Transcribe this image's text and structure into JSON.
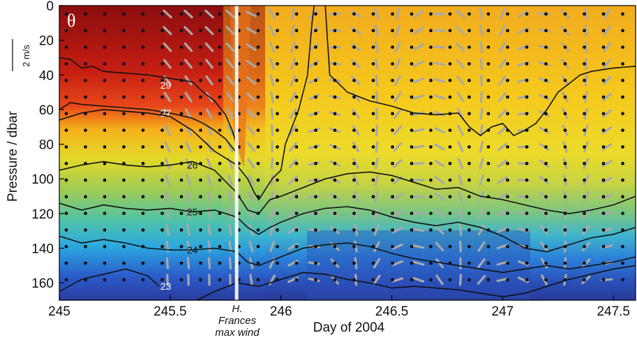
{
  "chart_data": {
    "type": "heatmap",
    "panel_label": "θ",
    "xlabel": "Day of 2004",
    "ylabel": "Pressure / dbar",
    "xlim": [
      245,
      247.6
    ],
    "ylim": [
      170,
      0
    ],
    "x_ticks": [
      {
        "value": 245,
        "label": "245"
      },
      {
        "value": 245.5,
        "label": "245.5"
      },
      {
        "value": 246,
        "label": "246"
      },
      {
        "value": 246.5,
        "label": "246.5"
      },
      {
        "value": 247,
        "label": "247"
      },
      {
        "value": 247.5,
        "label": "247.5"
      }
    ],
    "y_ticks": [
      {
        "value": 0,
        "label": "0"
      },
      {
        "value": 20,
        "label": "20"
      },
      {
        "value": 40,
        "label": "40"
      },
      {
        "value": 60,
        "label": "60"
      },
      {
        "value": 80,
        "label": "80"
      },
      {
        "value": 100,
        "label": "100"
      },
      {
        "value": 120,
        "label": "120"
      },
      {
        "value": 140,
        "label": "140"
      },
      {
        "value": 160,
        "label": "160"
      }
    ],
    "annotation": {
      "x": 245.8,
      "lines": [
        "H.",
        "Frances",
        "max wind"
      ]
    },
    "velocity_scale": {
      "label": "2 m/s"
    },
    "isotherms": [
      {
        "label": "29",
        "label_x": 245.48,
        "label_y": 46,
        "points": [
          [
            245,
            30
          ],
          [
            245.05,
            31
          ],
          [
            245.1,
            36
          ],
          [
            245.15,
            35
          ],
          [
            245.2,
            38
          ],
          [
            245.3,
            39
          ],
          [
            245.4,
            40
          ],
          [
            245.5,
            42
          ],
          [
            245.6,
            44
          ],
          [
            245.65,
            50
          ],
          [
            245.7,
            55
          ],
          [
            245.75,
            63
          ],
          [
            245.78,
            72
          ],
          [
            245.8,
            80
          ]
        ]
      },
      {
        "label": "27",
        "label_x": 245.48,
        "label_y": 62,
        "points": [
          [
            245,
            60
          ],
          [
            245.05,
            56
          ],
          [
            245.1,
            57
          ],
          [
            245.2,
            58
          ],
          [
            245.3,
            59
          ],
          [
            245.4,
            60
          ],
          [
            245.5,
            62
          ],
          [
            245.6,
            65
          ],
          [
            245.65,
            68
          ],
          [
            245.7,
            72
          ],
          [
            245.75,
            77
          ],
          [
            245.8,
            85
          ]
        ]
      },
      {
        "label": "",
        "label_x": 0,
        "label_y": 0,
        "points": [
          [
            245,
            66
          ],
          [
            245.1,
            62
          ],
          [
            245.2,
            60
          ],
          [
            245.3,
            61
          ],
          [
            245.4,
            62
          ],
          [
            245.5,
            64
          ],
          [
            245.55,
            68
          ],
          [
            245.6,
            72
          ],
          [
            245.65,
            78
          ],
          [
            245.7,
            84
          ],
          [
            245.75,
            88
          ],
          [
            245.8,
            92
          ],
          [
            245.85,
            100
          ],
          [
            245.88,
            108
          ],
          [
            245.9,
            112
          ],
          [
            245.93,
            106
          ],
          [
            245.96,
            100
          ],
          [
            246.0,
            95
          ],
          [
            246.02,
            80
          ],
          [
            246.05,
            70
          ],
          [
            246.08,
            60
          ],
          [
            246.1,
            50
          ],
          [
            246.12,
            40
          ],
          [
            246.13,
            25
          ],
          [
            246.14,
            10
          ],
          [
            246.15,
            0
          ]
        ]
      },
      {
        "label": "",
        "label_x": 0,
        "label_y": 0,
        "points": [
          [
            246.2,
            0
          ],
          [
            246.22,
            40
          ],
          [
            246.3,
            50
          ],
          [
            246.4,
            55
          ],
          [
            246.5,
            58
          ],
          [
            246.6,
            62
          ],
          [
            246.7,
            63
          ],
          [
            246.8,
            62
          ],
          [
            246.85,
            70
          ],
          [
            246.9,
            75
          ],
          [
            246.95,
            70
          ],
          [
            247.0,
            68
          ],
          [
            247.05,
            75
          ],
          [
            247.1,
            72
          ],
          [
            247.15,
            68
          ],
          [
            247.2,
            60
          ],
          [
            247.25,
            50
          ],
          [
            247.3,
            45
          ],
          [
            247.35,
            40
          ],
          [
            247.4,
            38
          ],
          [
            247.5,
            36
          ],
          [
            247.6,
            35
          ]
        ]
      },
      {
        "label": "26",
        "label_x": 245.6,
        "label_y": 92,
        "points": [
          [
            245,
            95
          ],
          [
            245.1,
            92
          ],
          [
            245.2,
            90
          ],
          [
            245.3,
            92
          ],
          [
            245.4,
            93
          ],
          [
            245.5,
            92
          ],
          [
            245.6,
            90
          ],
          [
            245.7,
            95
          ],
          [
            245.8,
            108
          ],
          [
            245.85,
            118
          ],
          [
            245.9,
            120
          ],
          [
            245.95,
            112
          ],
          [
            246.0,
            110
          ],
          [
            246.1,
            105
          ],
          [
            246.2,
            100
          ],
          [
            246.3,
            97
          ],
          [
            246.4,
            96
          ],
          [
            246.5,
            98
          ],
          [
            246.6,
            102
          ],
          [
            246.7,
            106
          ],
          [
            246.8,
            105
          ],
          [
            246.9,
            110
          ],
          [
            247.0,
            112
          ],
          [
            247.1,
            115
          ],
          [
            247.2,
            118
          ],
          [
            247.3,
            120
          ],
          [
            247.4,
            118
          ],
          [
            247.5,
            115
          ],
          [
            247.6,
            110
          ]
        ]
      },
      {
        "label": "25",
        "label_x": 245.6,
        "label_y": 119,
        "points": [
          [
            245,
            114
          ],
          [
            245.1,
            118
          ],
          [
            245.2,
            115
          ],
          [
            245.3,
            117
          ],
          [
            245.4,
            118
          ],
          [
            245.5,
            117
          ],
          [
            245.6,
            119
          ],
          [
            245.7,
            118
          ],
          [
            245.8,
            122
          ],
          [
            245.85,
            128
          ],
          [
            245.9,
            132
          ],
          [
            245.95,
            128
          ],
          [
            246.0,
            125
          ],
          [
            246.1,
            120
          ],
          [
            246.2,
            117
          ],
          [
            246.3,
            116
          ],
          [
            246.4,
            118
          ],
          [
            246.5,
            122
          ],
          [
            246.6,
            125
          ],
          [
            246.7,
            127
          ],
          [
            246.8,
            125
          ],
          [
            246.9,
            128
          ],
          [
            247.0,
            133
          ],
          [
            247.1,
            140
          ],
          [
            247.2,
            142
          ],
          [
            247.3,
            138
          ],
          [
            247.4,
            134
          ],
          [
            247.5,
            132
          ],
          [
            247.6,
            128
          ]
        ]
      },
      {
        "label": "24",
        "label_x": 245.6,
        "label_y": 141,
        "points": [
          [
            245,
            133
          ],
          [
            245.1,
            137
          ],
          [
            245.2,
            135
          ],
          [
            245.3,
            137
          ],
          [
            245.4,
            140
          ],
          [
            245.5,
            141
          ],
          [
            245.6,
            141
          ],
          [
            245.7,
            140
          ],
          [
            245.8,
            142
          ],
          [
            245.85,
            148
          ],
          [
            245.9,
            150
          ],
          [
            246.0,
            145
          ],
          [
            246.1,
            140
          ],
          [
            246.2,
            138
          ],
          [
            246.3,
            137
          ],
          [
            246.4,
            139
          ],
          [
            246.5,
            143
          ],
          [
            246.6,
            146
          ],
          [
            246.7,
            148
          ],
          [
            246.8,
            150
          ],
          [
            246.9,
            152
          ],
          [
            247.0,
            154
          ],
          [
            247.1,
            152
          ],
          [
            247.2,
            150
          ],
          [
            247.3,
            152
          ],
          [
            247.4,
            150
          ],
          [
            247.5,
            148
          ],
          [
            247.6,
            145
          ]
        ]
      },
      {
        "label": "23",
        "label_x": 245.48,
        "label_y": 162,
        "points": [
          [
            245,
            165
          ],
          [
            245.1,
            158
          ],
          [
            245.2,
            155
          ],
          [
            245.3,
            152
          ],
          [
            245.4,
            156
          ],
          [
            245.45,
            162
          ]
        ]
      },
      {
        "label": "",
        "label_x": 0,
        "label_y": 0,
        "points": [
          [
            245.62,
            170
          ],
          [
            245.7,
            165
          ],
          [
            245.8,
            160
          ],
          [
            245.9,
            162
          ],
          [
            246.0,
            158
          ],
          [
            246.1,
            154
          ],
          [
            246.2,
            155
          ],
          [
            246.3,
            158
          ],
          [
            246.4,
            160
          ],
          [
            246.5,
            163
          ],
          [
            246.6,
            162
          ],
          [
            246.7,
            163
          ],
          [
            246.8,
            164
          ],
          [
            246.9,
            166
          ],
          [
            247.0,
            168
          ],
          [
            247.1,
            166
          ],
          [
            247.2,
            162
          ],
          [
            247.3,
            158
          ],
          [
            247.4,
            155
          ],
          [
            247.5,
            152
          ],
          [
            247.6,
            150
          ]
        ]
      }
    ]
  }
}
